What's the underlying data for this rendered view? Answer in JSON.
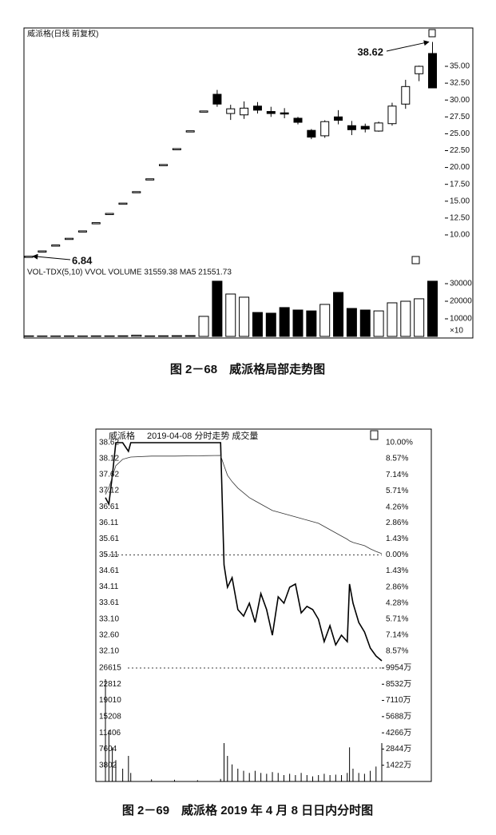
{
  "chart_data": [
    {
      "type": "candlestick",
      "title": "威派格(日线 前复权)",
      "caption": "图 2－68　威派格局部走势图",
      "volume_title": "VOL-TDX(5,10) VVOL VOLUME 31559.38 MA5 21551.73",
      "volume_unit": "×10",
      "open": [
        6.84,
        7.63,
        8.51,
        9.5,
        10.6,
        11.82,
        13.19,
        14.72,
        16.42,
        18.32,
        20.44,
        22.8,
        25.44,
        28.38,
        30.85,
        28.0,
        27.8,
        29.1,
        28.3,
        28.1,
        27.3,
        25.5,
        24.7,
        27.5,
        26.2,
        26.1,
        25.4,
        26.5,
        29.4,
        33.9,
        36.9
      ],
      "high": [
        6.84,
        7.63,
        8.51,
        9.5,
        10.6,
        11.82,
        13.19,
        14.72,
        16.42,
        18.32,
        20.44,
        22.8,
        25.44,
        28.38,
        31.5,
        29.3,
        29.8,
        29.7,
        29.0,
        28.8,
        27.5,
        25.7,
        27.0,
        28.5,
        26.9,
        26.5,
        26.8,
        29.6,
        33.0,
        35.1,
        38.62
      ],
      "low": [
        6.84,
        7.63,
        8.51,
        9.5,
        10.6,
        11.82,
        13.19,
        14.72,
        16.42,
        18.32,
        20.44,
        22.8,
        25.44,
        28.38,
        29.0,
        27.05,
        27.2,
        28.0,
        27.5,
        27.3,
        26.4,
        24.2,
        24.4,
        26.4,
        24.8,
        25.2,
        25.3,
        26.2,
        28.7,
        32.8,
        31.8
      ],
      "close": [
        6.84,
        7.63,
        8.51,
        9.5,
        10.6,
        11.82,
        13.19,
        14.72,
        16.42,
        18.32,
        20.44,
        22.8,
        25.44,
        28.38,
        29.4,
        28.7,
        28.8,
        28.5,
        28.0,
        28.0,
        26.7,
        24.5,
        26.8,
        27.0,
        25.6,
        25.7,
        26.6,
        29.1,
        32.0,
        35.0,
        31.8
      ],
      "volume": [
        300,
        250,
        250,
        300,
        250,
        300,
        300,
        350,
        700,
        300,
        350,
        400,
        450,
        11400,
        31400,
        24100,
        22300,
        13600,
        13200,
        16400,
        15000,
        14500,
        18200,
        25000,
        15900,
        15000,
        14500,
        19100,
        20000,
        21400,
        31400
      ],
      "ylim": [
        5.14,
        40.45
      ],
      "yticks": [
        {
          "value": 35,
          "label": "35.00"
        },
        {
          "value": 32.5,
          "label": "32.50"
        },
        {
          "value": 30,
          "label": "30.00"
        },
        {
          "value": 27.5,
          "label": "27.50"
        },
        {
          "value": 25,
          "label": "25.00"
        },
        {
          "value": 22.5,
          "label": "22.50"
        },
        {
          "value": 20,
          "label": "20.00"
        },
        {
          "value": 17.5,
          "label": "17.50"
        },
        {
          "value": 15,
          "label": "15.00"
        },
        {
          "value": 12.5,
          "label": "12.50"
        },
        {
          "value": 10,
          "label": "10.00"
        }
      ],
      "annotations": [
        38.62,
        6.84
      ],
      "volume_ylim": [
        0,
        33000
      ],
      "volume_yticks": [
        30000,
        20000,
        10000
      ],
      "up_color": "#ffffff",
      "down_color": "#000000"
    },
    {
      "type": "line",
      "title": "威派格",
      "subtitle": "2019-04-08 分时走势 成交量",
      "caption": "图 2－69　威派格 2019 年 4 月 8 日日内分时图",
      "x": [
        0,
        3,
        6,
        9,
        15,
        20,
        22,
        40,
        60,
        80,
        100,
        103,
        106,
        110,
        115,
        120,
        125,
        130,
        135,
        140,
        145,
        150,
        155,
        160,
        165,
        170,
        175,
        180,
        185,
        190,
        195,
        200,
        205,
        210,
        212,
        215,
        220,
        225,
        230,
        235,
        240
      ],
      "xlim": [
        0,
        240
      ],
      "series": [
        {
          "color": "#000000",
          "values": [
            36.9,
            36.7,
            37.6,
            38.62,
            38.62,
            38.35,
            38.62,
            38.62,
            38.62,
            38.62,
            38.62,
            34.8,
            34.1,
            34.4,
            33.4,
            33.2,
            33.6,
            33.0,
            33.9,
            33.4,
            32.6,
            33.8,
            33.6,
            34.1,
            34.2,
            33.3,
            33.5,
            33.4,
            33.1,
            32.4,
            32.9,
            32.3,
            32.6,
            32.4,
            34.2,
            33.6,
            33.0,
            32.7,
            32.2,
            31.95,
            31.8
          ]
        },
        {
          "color": "#333333",
          "values": [
            37.0,
            37.2,
            37.55,
            37.9,
            38.1,
            38.15,
            38.17,
            38.2,
            38.2,
            38.21,
            38.22,
            37.9,
            37.6,
            37.4,
            37.2,
            37.05,
            36.9,
            36.8,
            36.7,
            36.6,
            36.5,
            36.45,
            36.4,
            36.35,
            36.3,
            36.25,
            36.2,
            36.15,
            36.1,
            36.0,
            35.9,
            35.8,
            35.7,
            35.6,
            35.55,
            35.5,
            35.45,
            35.4,
            35.3,
            35.22,
            35.15
          ]
        }
      ],
      "ylim": [
        31.6,
        38.62
      ],
      "yticks": [
        38.62,
        38.12,
        37.62,
        37.12,
        36.61,
        36.11,
        35.61,
        35.11,
        34.61,
        34.11,
        33.61,
        {
          "value": 33.1,
          "label": "33.10"
        },
        {
          "value": 32.6,
          "label": "32.60"
        },
        {
          "value": 32.1,
          "label": "32.10"
        }
      ],
      "y2lim": [
        -10,
        10
      ],
      "y2ticks": [
        {
          "value": 10,
          "label": "10.00%"
        },
        {
          "value": 8.57,
          "label": "8.57%"
        },
        {
          "value": 7.14,
          "label": "7.14%"
        },
        {
          "value": 5.71,
          "label": "5.71%"
        },
        {
          "value": 4.26,
          "label": "4.26%"
        },
        {
          "value": 2.86,
          "label": "2.86%"
        },
        {
          "value": 1.43,
          "label": "1.43%"
        },
        {
          "value": 0,
          "label": "0.00%"
        },
        {
          "value": -1.43,
          "label": "1.43%"
        },
        {
          "value": -2.86,
          "label": "2.86%"
        },
        {
          "value": -4.28,
          "label": "4.28%"
        },
        {
          "value": -5.71,
          "label": "5.71%"
        },
        {
          "value": -7.14,
          "label": "7.14%"
        },
        {
          "value": -8.57,
          "label": "8.57%"
        }
      ],
      "volume": {
        "color": "#000000",
        "values": [
          24000,
          12000,
          8000,
          5000,
          3000,
          6000,
          2000,
          500,
          400,
          300,
          600,
          9000,
          6000,
          4000,
          3000,
          2500,
          2000,
          2500,
          2000,
          1800,
          2200,
          2000,
          1500,
          1800,
          1500,
          2000,
          1500,
          1200,
          1500,
          1800,
          1500,
          1600,
          1500,
          2000,
          8000,
          3000,
          2000,
          1800,
          2500,
          3500,
          9000
        ],
        "ylim": [
          0,
          26615
        ],
        "yticks": [
          26615,
          22812,
          19010,
          15208,
          11406,
          7604,
          3802
        ],
        "y2lim": [
          0,
          9954
        ],
        "y2ticks": [
          {
            "value": 9954,
            "label": "9954万"
          },
          {
            "value": 8532,
            "label": "8532万"
          },
          {
            "value": 7110,
            "label": "7110万"
          },
          {
            "value": 5688,
            "label": "5688万"
          },
          {
            "value": 4266,
            "label": "4266万"
          },
          {
            "value": 2844,
            "label": "2844万"
          },
          {
            "value": 1422,
            "label": "1422万"
          }
        ]
      }
    }
  ]
}
